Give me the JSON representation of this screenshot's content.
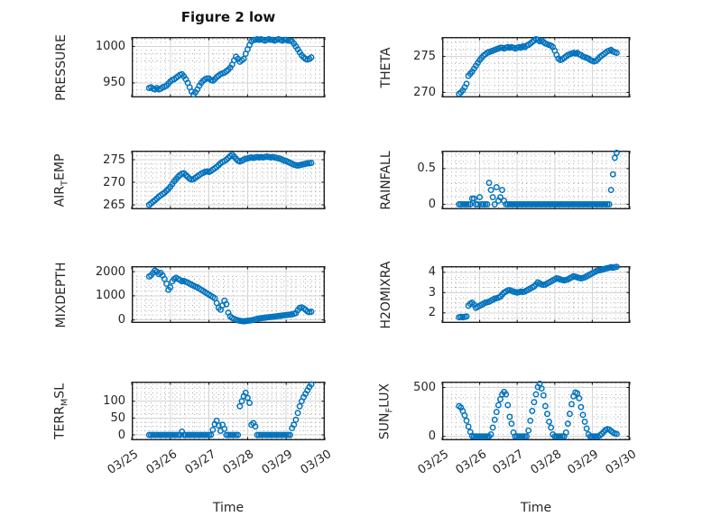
{
  "figure": {
    "title": "Figure 2 low",
    "xlabel": "Time",
    "marker_color": "#0072BD",
    "axes_color": "#1f1f1f",
    "major_grid_color": "#d4d4d4",
    "minor_grid_color": "#a8a8a8",
    "background": "#ffffff"
  },
  "x_axis": {
    "lim": [
      0,
      5
    ],
    "tick_labels": [
      "03/25",
      "03/26",
      "03/27",
      "03/28",
      "03/29",
      "03/30"
    ],
    "minor_step": 0.125
  },
  "chart_data": [
    {
      "id": "pressure",
      "type": "scatter",
      "ylabel_parts": [
        [
          "t",
          "PRESSURE"
        ]
      ],
      "ylim": [
        930,
        1013
      ],
      "yminor": 10,
      "yticks": [
        {
          "v": 950,
          "label": "950"
        },
        {
          "v": 1000,
          "label": "1000"
        }
      ],
      "t_start": 0.45,
      "t_step": 0.05,
      "values": [
        943,
        944,
        942,
        941,
        943,
        941,
        942,
        944,
        945,
        946,
        949,
        952,
        954,
        955,
        957,
        959,
        961,
        962,
        959,
        955,
        950,
        944,
        938,
        934,
        937,
        941,
        946,
        950,
        953,
        955,
        956,
        956,
        954,
        953,
        955,
        958,
        960,
        962,
        963,
        964,
        966,
        968,
        971,
        975,
        981,
        986,
        983,
        979,
        981,
        983,
        990,
        996,
        1002,
        1007,
        1009,
        1009,
        1010,
        1009,
        1010,
        1009,
        1008,
        1009,
        1010,
        1009,
        1009,
        1008,
        1009,
        1010,
        1009,
        1008,
        1009,
        1009,
        1008,
        1008,
        1007,
        1004,
        1000,
        996,
        992,
        988,
        985,
        983,
        982,
        983,
        985
      ]
    },
    {
      "id": "theta",
      "type": "scatter",
      "ylabel_parts": [
        [
          "t",
          "THETA"
        ]
      ],
      "ylim": [
        269.3,
        277.7
      ],
      "yminor": 1,
      "yticks": [
        {
          "v": 270,
          "label": "270"
        },
        {
          "v": 275,
          "label": "275"
        }
      ],
      "t_start": 0.45,
      "t_step": 0.05,
      "values": [
        269.8,
        270.0,
        270.3,
        270.7,
        271.2,
        272.3,
        272.6,
        272.9,
        273.3,
        273.7,
        274.1,
        274.5,
        274.8,
        275.1,
        275.3,
        275.5,
        275.6,
        275.7,
        275.8,
        275.9,
        276.0,
        276.1,
        276.2,
        276.2,
        276.1,
        276.2,
        276.3,
        276.2,
        276.3,
        276.2,
        276.1,
        276.2,
        276.3,
        276.2,
        276.4,
        276.3,
        276.5,
        276.6,
        276.8,
        277.0,
        277.2,
        277.4,
        277.3,
        277.1,
        277.2,
        277.0,
        276.8,
        276.7,
        276.6,
        276.5,
        276.3,
        275.8,
        275.2,
        274.7,
        274.5,
        274.6,
        274.8,
        275.0,
        275.2,
        275.3,
        275.4,
        275.5,
        275.4,
        275.5,
        275.3,
        275.2,
        275.0,
        274.9,
        274.8,
        274.7,
        274.5,
        274.4,
        274.3,
        274.4,
        274.6,
        274.9,
        275.1,
        275.3,
        275.5,
        275.7,
        275.8,
        275.9,
        275.7,
        275.6,
        275.5
      ]
    },
    {
      "id": "airtemp",
      "type": "scatter",
      "ylabel_parts": [
        [
          "t",
          "AIR"
        ],
        [
          "s",
          "T"
        ],
        [
          "t",
          "EMP"
        ]
      ],
      "ylim": [
        264,
        277
      ],
      "yminor": 1,
      "yticks": [
        {
          "v": 265,
          "label": "265"
        },
        {
          "v": 270,
          "label": "270"
        },
        {
          "v": 275,
          "label": "275"
        }
      ],
      "t_start": 0.45,
      "t_step": 0.05,
      "values": [
        265.0,
        265.3,
        265.7,
        266.0,
        266.4,
        266.8,
        267.1,
        267.4,
        267.7,
        268.1,
        268.5,
        269.0,
        269.6,
        270.2,
        270.7,
        271.2,
        271.6,
        271.9,
        272.0,
        271.6,
        271.2,
        270.8,
        270.6,
        270.7,
        271.0,
        271.3,
        271.6,
        271.9,
        272.1,
        272.3,
        272.4,
        272.3,
        272.5,
        272.8,
        273.1,
        273.4,
        273.8,
        274.2,
        274.5,
        274.7,
        275.0,
        275.4,
        275.8,
        276.1,
        275.7,
        275.2,
        274.8,
        274.6,
        274.8,
        275.0,
        275.2,
        275.3,
        275.4,
        275.5,
        275.4,
        275.5,
        275.6,
        275.5,
        275.6,
        275.5,
        275.6,
        275.7,
        275.6,
        275.5,
        275.6,
        275.5,
        275.4,
        275.3,
        275.2,
        275.0,
        274.8,
        274.7,
        274.5,
        274.3,
        274.1,
        273.9,
        273.8,
        273.7,
        273.8,
        273.9,
        274.0,
        274.1,
        274.2,
        274.2,
        274.3
      ]
    },
    {
      "id": "rainfall",
      "type": "scatter",
      "ylabel_parts": [
        [
          "t",
          "RAINFALL"
        ]
      ],
      "ylim": [
        -0.07,
        0.75
      ],
      "yminor": 0.1,
      "yticks": [
        {
          "v": 0,
          "label": "0"
        },
        {
          "v": 0.5,
          "label": "0.5"
        }
      ],
      "t_start": 0.45,
      "t_step": 0.05,
      "values": [
        0,
        0,
        0,
        0,
        0,
        0,
        0,
        0.08,
        0.08,
        0,
        0,
        0.1,
        0,
        0,
        0,
        0,
        0.3,
        0.2,
        0.1,
        0,
        0.24,
        0.05,
        0.1,
        0.2,
        0.05,
        0,
        0,
        0,
        0,
        0,
        0,
        0,
        0,
        0,
        0,
        0,
        0,
        0,
        0,
        0,
        0,
        0,
        0,
        0,
        0,
        0,
        0,
        0,
        0,
        0,
        0,
        0,
        0,
        0,
        0,
        0,
        0,
        0,
        0,
        0,
        0,
        0,
        0,
        0,
        0,
        0,
        0,
        0,
        0,
        0,
        0,
        0,
        0,
        0,
        0,
        0,
        0,
        0,
        0,
        0,
        0,
        0.2,
        0.42,
        0.65,
        0.72
      ]
    },
    {
      "id": "mixdepth",
      "type": "scatter",
      "ylabel_parts": [
        [
          "t",
          "MIXDEPTH"
        ]
      ],
      "ylim": [
        -130,
        2230
      ],
      "yminor": 200,
      "yticks": [
        {
          "v": 0,
          "label": "0"
        },
        {
          "v": 1000,
          "label": "1000"
        },
        {
          "v": 2000,
          "label": "2000"
        }
      ],
      "t_start": 0.45,
      "t_step": 0.05,
      "values": [
        1800,
        1850,
        1950,
        2050,
        2000,
        1900,
        1950,
        1850,
        1700,
        1500,
        1250,
        1350,
        1600,
        1700,
        1750,
        1700,
        1650,
        1600,
        1620,
        1580,
        1550,
        1500,
        1460,
        1420,
        1380,
        1350,
        1300,
        1250,
        1200,
        1150,
        1100,
        1050,
        1000,
        950,
        900,
        700,
        500,
        420,
        600,
        800,
        650,
        300,
        150,
        80,
        40,
        10,
        -20,
        -40,
        -50,
        -60,
        -50,
        -40,
        -30,
        -20,
        0,
        20,
        40,
        60,
        70,
        80,
        90,
        100,
        110,
        120,
        130,
        140,
        150,
        160,
        170,
        180,
        190,
        200,
        210,
        220,
        230,
        250,
        280,
        400,
        500,
        520,
        480,
        420,
        350,
        320,
        340
      ]
    },
    {
      "id": "h2omixra",
      "type": "scatter",
      "ylabel_parts": [
        [
          "t",
          "H2OMIXRA"
        ]
      ],
      "ylim": [
        1.5,
        4.3
      ],
      "yminor": 0.25,
      "yticks": [
        {
          "v": 2,
          "label": "2"
        },
        {
          "v": 3,
          "label": "3"
        },
        {
          "v": 4,
          "label": "4"
        }
      ],
      "t_start": 0.45,
      "t_step": 0.05,
      "values": [
        1.78,
        1.8,
        1.78,
        1.8,
        1.82,
        2.35,
        2.45,
        2.5,
        2.4,
        2.25,
        2.3,
        2.35,
        2.4,
        2.45,
        2.5,
        2.52,
        2.55,
        2.6,
        2.65,
        2.7,
        2.72,
        2.75,
        2.8,
        2.9,
        3.0,
        3.05,
        3.1,
        3.12,
        3.08,
        3.05,
        3.02,
        3.0,
        3.02,
        3.05,
        3.03,
        3.05,
        3.1,
        3.15,
        3.2,
        3.25,
        3.3,
        3.4,
        3.5,
        3.45,
        3.4,
        3.38,
        3.4,
        3.45,
        3.5,
        3.55,
        3.6,
        3.65,
        3.7,
        3.68,
        3.65,
        3.62,
        3.6,
        3.62,
        3.65,
        3.7,
        3.75,
        3.8,
        3.78,
        3.75,
        3.72,
        3.7,
        3.72,
        3.75,
        3.8,
        3.85,
        3.9,
        3.95,
        4.0,
        4.05,
        4.08,
        4.1,
        4.12,
        4.15,
        4.18,
        4.2,
        4.22,
        4.25,
        4.22,
        4.25,
        4.27
      ]
    },
    {
      "id": "terrmsl",
      "type": "scatter",
      "ylabel_parts": [
        [
          "t",
          "TERR"
        ],
        [
          "s",
          "M"
        ],
        [
          "t",
          "SL"
        ]
      ],
      "ylim": [
        -16,
        158
      ],
      "yminor": 12.5,
      "yticks": [
        {
          "v": 0,
          "label": "0"
        },
        {
          "v": 50,
          "label": "50"
        },
        {
          "v": 100,
          "label": "100"
        }
      ],
      "t_start": 0.45,
      "t_step": 0.05,
      "values": [
        0,
        0,
        0,
        0,
        0,
        0,
        0,
        0,
        0,
        0,
        0,
        0,
        0,
        0,
        0,
        0,
        0,
        10,
        0,
        0,
        0,
        0,
        0,
        0,
        0,
        0,
        0,
        0,
        0,
        0,
        0,
        0,
        0,
        15,
        32,
        42,
        28,
        12,
        30,
        18,
        0,
        0,
        0,
        0,
        0,
        0,
        0,
        85,
        100,
        115,
        125,
        110,
        95,
        30,
        35,
        25,
        0,
        0,
        0,
        0,
        0,
        0,
        0,
        0,
        0,
        0,
        0,
        0,
        0,
        0,
        0,
        0,
        0,
        0,
        20,
        30,
        45,
        65,
        85,
        100,
        112,
        122,
        132,
        142,
        150
      ]
    },
    {
      "id": "sunflux",
      "type": "scatter",
      "ylabel_parts": [
        [
          "t",
          "SUN"
        ],
        [
          "s",
          "F"
        ],
        [
          "t",
          "LUX"
        ]
      ],
      "ylim": [
        -40,
        560
      ],
      "yminor": 100,
      "yticks": [
        {
          "v": 0,
          "label": "0"
        },
        {
          "v": 500,
          "label": "500"
        }
      ],
      "t_start": 0.45,
      "t_step": 0.05,
      "values": [
        310,
        295,
        260,
        215,
        160,
        100,
        45,
        5,
        0,
        0,
        0,
        0,
        0,
        0,
        0,
        0,
        0,
        20,
        90,
        170,
        250,
        320,
        380,
        430,
        455,
        430,
        320,
        200,
        130,
        40,
        0,
        0,
        0,
        0,
        0,
        0,
        0,
        60,
        160,
        260,
        350,
        430,
        505,
        540,
        490,
        420,
        310,
        230,
        150,
        90,
        20,
        0,
        0,
        0,
        0,
        0,
        0,
        40,
        130,
        230,
        330,
        410,
        450,
        440,
        390,
        300,
        220,
        150,
        80,
        20,
        0,
        0,
        0,
        0,
        0,
        10,
        25,
        45,
        65,
        75,
        70,
        55,
        40,
        30,
        25
      ]
    }
  ]
}
